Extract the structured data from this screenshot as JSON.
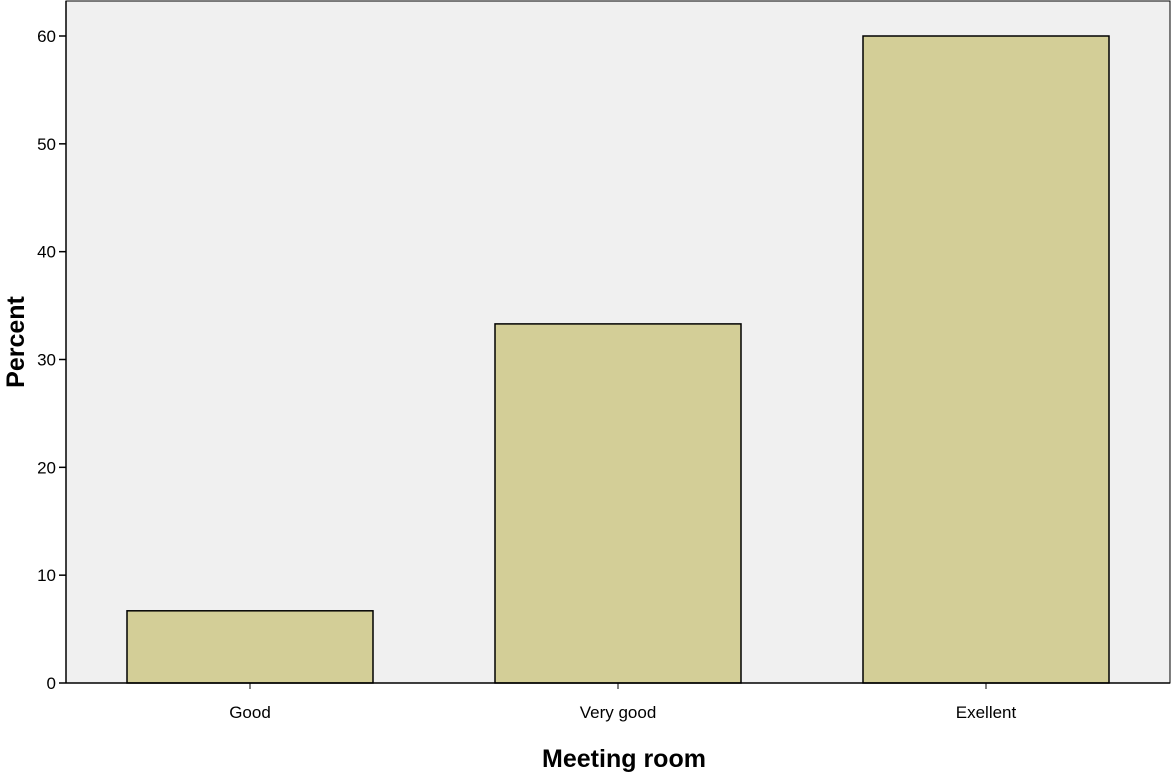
{
  "chart_data": {
    "type": "bar",
    "categories": [
      "Good",
      "Very good",
      "Exellent"
    ],
    "values": [
      6.7,
      33.3,
      60.0
    ],
    "xlabel": "Meeting room",
    "ylabel": "Percent",
    "ylim": [
      0,
      65
    ],
    "yticks": [
      0,
      10,
      20,
      30,
      40,
      50,
      60
    ],
    "ytick_labels": [
      "0",
      "10",
      "20",
      "30",
      "40",
      "50",
      "60"
    ],
    "grid": false,
    "colors": {
      "plot_background": "#f0f0f0",
      "bar_fill": "#d3ce97",
      "bar_stroke": "#000000",
      "axis": "#000000"
    }
  }
}
